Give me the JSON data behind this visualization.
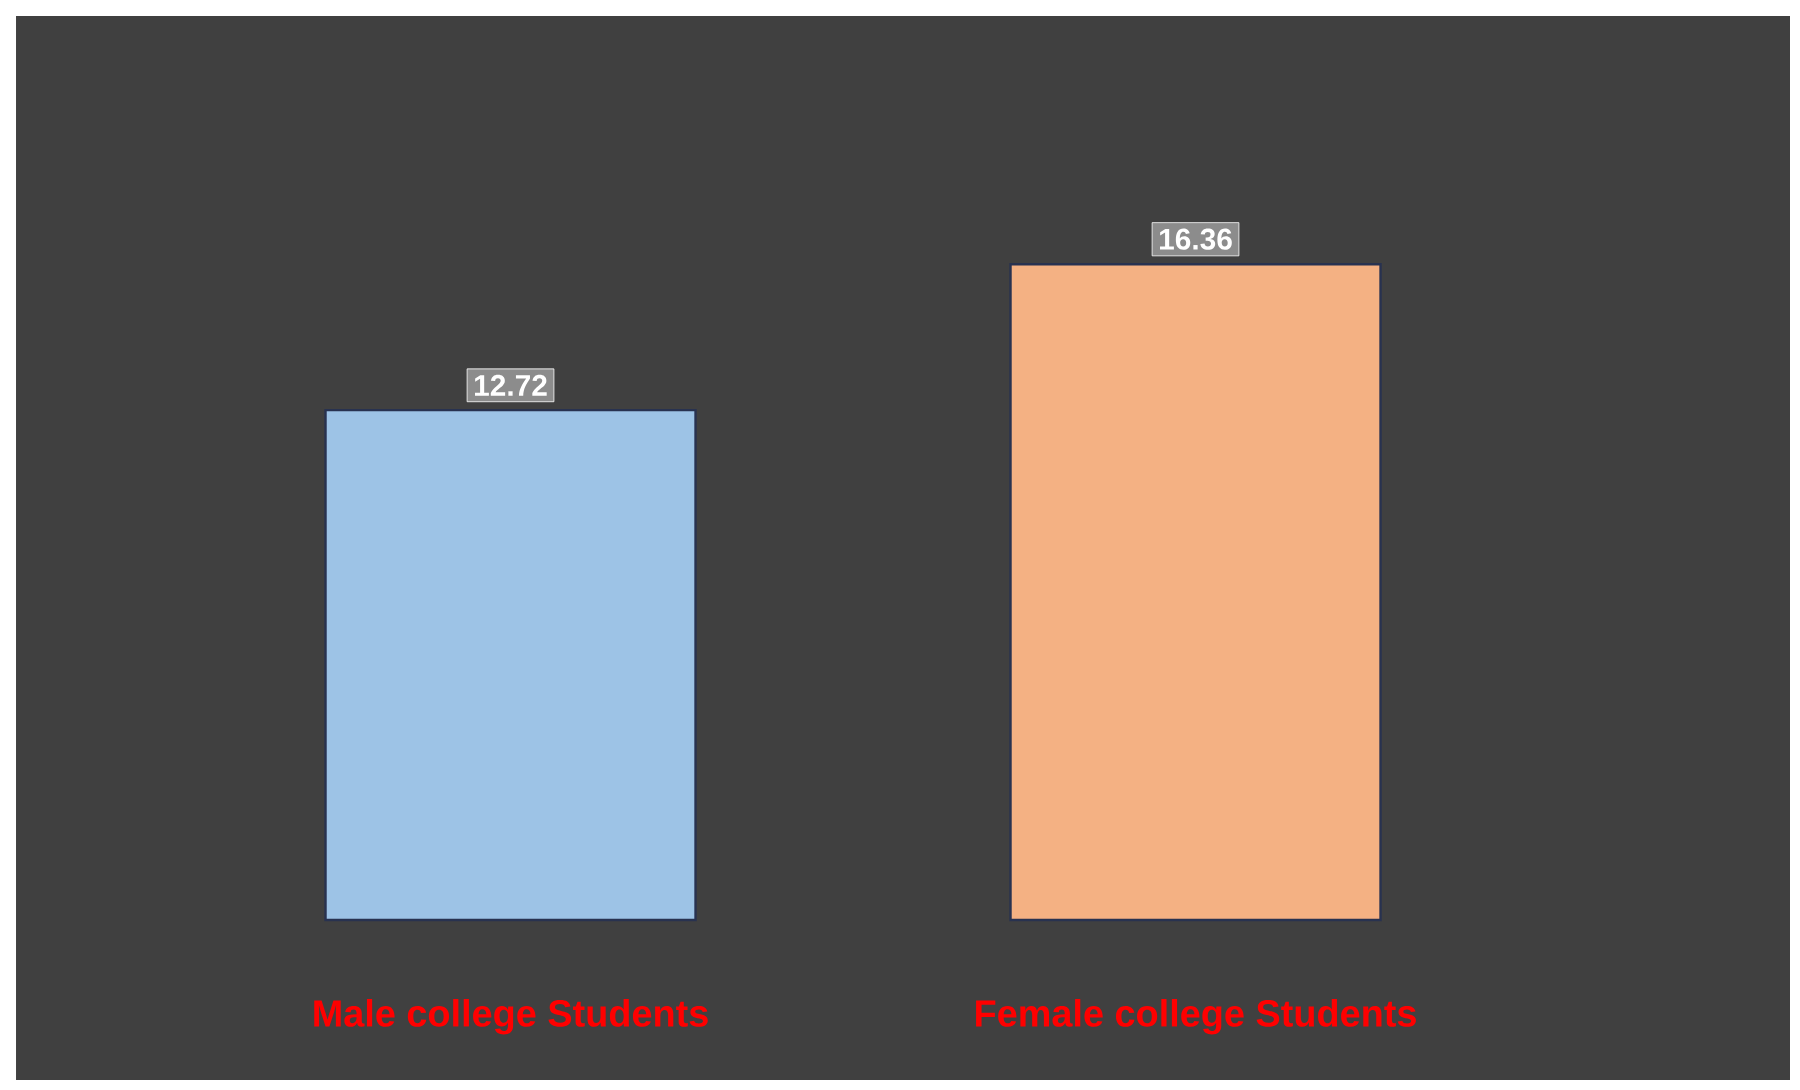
{
  "chart_data": {
    "type": "bar",
    "categories": [
      "Male college Students",
      "Female college Students"
    ],
    "values": [
      12.72,
      16.36
    ],
    "colors": [
      "#9dc3e6",
      "#f4b183"
    ],
    "data_labels": true
  }
}
